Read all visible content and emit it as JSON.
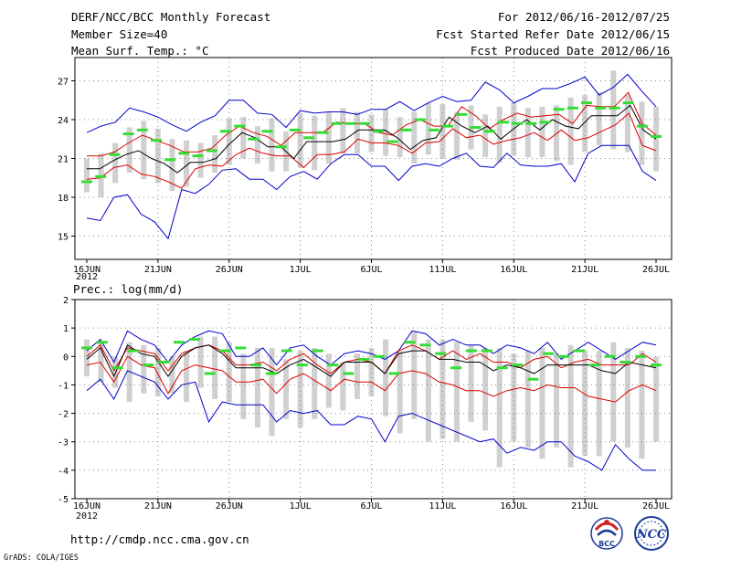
{
  "header": {
    "title": "DERF/NCC/BCC Monthly Forecast",
    "member_size": "Member Size=40",
    "forecast_range": "For 2012/06/16-2012/07/25",
    "started_refer": "Fcst Started Refer Date 2012/06/15",
    "produced": "Fcst Produced Date 2012/06/16"
  },
  "footer": {
    "url": "http://cmdp.ncc.cma.gov.cn",
    "credit": "GrADS: COLA/IGES",
    "logo_bcc": "BCC",
    "logo_ncc": "NCC"
  },
  "colors": {
    "median": "#000000",
    "quartile": "#dd0000",
    "extreme": "#0000cc",
    "observed": "#33dd33",
    "spread": "#d0d0d0",
    "grid": "#888888"
  },
  "chart_data": [
    {
      "type": "line",
      "title": "Mean Surf. Temp.: °C",
      "year_label": "2012",
      "x_tick_labels": [
        "16JUN",
        "21JUN",
        "26JUN",
        "1JUL",
        "6JUL",
        "11JUL",
        "16JUL",
        "21JUL",
        "26JUL"
      ],
      "y_ticks": [
        15,
        18,
        21,
        24,
        27
      ],
      "y_tick_labels": [
        "15",
        "18",
        "21",
        "24",
        "27"
      ],
      "ylim": [
        13.2,
        28.8
      ],
      "x_day_offsets": [
        0,
        40
      ],
      "series": [
        {
          "name": "max",
          "values": [
            23.0,
            23.5,
            23.8,
            24.9,
            24.6,
            24.2,
            23.6,
            23.1,
            23.8,
            24.3,
            25.5,
            25.5,
            24.5,
            24.4,
            23.4,
            24.7,
            24.5,
            24.6,
            24.6,
            24.4,
            24.8,
            24.8,
            25.4,
            24.7,
            25.3,
            25.8,
            25.4,
            25.5,
            26.9,
            26.3,
            25.3,
            25.8,
            26.4,
            26.4,
            26.8,
            27.3,
            25.9,
            26.5,
            27.5,
            26.2,
            25.0
          ]
        },
        {
          "name": "q75",
          "values": [
            21.2,
            21.2,
            21.5,
            22.2,
            22.8,
            22.4,
            22.0,
            21.5,
            21.5,
            21.8,
            22.8,
            23.5,
            23.0,
            22.7,
            22.0,
            23.0,
            23.0,
            23.0,
            23.8,
            23.7,
            23.7,
            23.0,
            22.8,
            23.6,
            24.0,
            23.5,
            23.5,
            25.0,
            24.3,
            23.3,
            24.0,
            24.5,
            24.2,
            24.3,
            24.4,
            23.7,
            25.1,
            25.0,
            25.0,
            26.1,
            23.7,
            22.8
          ]
        },
        {
          "name": "median",
          "values": [
            20.2,
            20.2,
            20.8,
            21.3,
            21.6,
            21.0,
            20.6,
            19.9,
            20.7,
            20.7,
            21.0,
            22.1,
            23.0,
            22.6,
            21.9,
            21.9,
            21.0,
            22.3,
            22.3,
            22.3,
            22.5,
            23.2,
            23.2,
            23.2,
            22.6,
            21.7,
            22.4,
            22.6,
            24.2,
            23.5,
            23.0,
            23.5,
            22.5,
            23.3,
            24.0,
            23.2,
            24.0,
            23.5,
            23.3,
            24.3,
            24.3,
            24.3,
            25.1,
            23.2,
            22.5
          ]
        },
        {
          "name": "q25",
          "values": [
            19.4,
            19.5,
            20.3,
            20.5,
            19.8,
            19.6,
            19.2,
            18.7,
            20.2,
            20.5,
            20.4,
            21.3,
            21.8,
            21.4,
            21.2,
            21.2,
            20.3,
            21.3,
            21.3,
            21.5,
            22.5,
            22.2,
            22.2,
            22.0,
            21.4,
            22.2,
            22.3,
            23.3,
            22.6,
            22.8,
            22.1,
            22.4,
            22.6,
            23.0,
            22.4,
            23.2,
            22.4,
            22.6,
            23.1,
            23.6,
            24.5,
            22.0,
            21.6
          ]
        },
        {
          "name": "min",
          "values": [
            16.4,
            16.2,
            18.0,
            18.2,
            16.7,
            16.1,
            14.8,
            18.6,
            18.3,
            19.0,
            20.1,
            20.2,
            19.4,
            19.4,
            18.6,
            19.6,
            20.0,
            19.4,
            20.6,
            21.3,
            21.3,
            20.4,
            20.4,
            19.3,
            20.4,
            20.6,
            20.4,
            21.0,
            21.4,
            20.4,
            20.3,
            21.4,
            20.5,
            20.4,
            20.4,
            20.6,
            19.2,
            21.4,
            22.0,
            22.0,
            22.0,
            20.0,
            19.3
          ]
        },
        {
          "name": "observed",
          "values": [
            19.2,
            19.6,
            21.3,
            22.9,
            23.2,
            22.4,
            20.9,
            21.4,
            21.2,
            21.6,
            23.1,
            23.5,
            22.5,
            23.1,
            21.9,
            23.2,
            22.6,
            23.0,
            23.7,
            23.7,
            23.7,
            23.1,
            22.3,
            23.2,
            24.0,
            23.2,
            23.5,
            24.4,
            23.4,
            23.1,
            23.8,
            23.7,
            23.7,
            23.8,
            24.8,
            24.9,
            25.3,
            24.9,
            24.9,
            25.3,
            23.5,
            22.7
          ]
        },
        {
          "name": "spread_hi",
          "values": [
            21.0,
            21.4,
            22.2,
            23.4,
            23.9,
            23.3,
            22.5,
            22.4,
            22.2,
            22.8,
            24.1,
            24.2,
            23.5,
            24.1,
            23.1,
            24.5,
            24.3,
            24.6,
            24.9,
            24.6,
            24.4,
            24.8,
            24.2,
            24.6,
            25.3,
            25.2,
            24.6,
            25.1,
            24.4,
            25.0,
            25.3,
            24.9,
            25.0,
            25.1,
            25.7,
            25.9,
            26.1,
            27.8,
            25.9,
            25.4,
            25.0
          ]
        },
        {
          "name": "spread_lo",
          "values": [
            18.4,
            18.0,
            19.1,
            19.9,
            19.4,
            19.1,
            18.5,
            18.8,
            19.5,
            19.9,
            20.5,
            21.0,
            20.6,
            20.0,
            20.0,
            20.3,
            20.1,
            20.6,
            21.4,
            21.4,
            21.5,
            21.2,
            21.1,
            20.6,
            21.3,
            21.0,
            20.9,
            21.7,
            21.1,
            20.7,
            21.2,
            21.1,
            21.1,
            20.8,
            20.5,
            21.5,
            22.0,
            21.7,
            21.5,
            20.5,
            20.0
          ]
        }
      ]
    },
    {
      "type": "line",
      "title": "Prec.: log(mm/d)",
      "year_label": "2012",
      "x_tick_labels": [
        "16JUN",
        "21JUN",
        "26JUN",
        "1JUL",
        "6JUL",
        "11JUL",
        "16JUL",
        "21JUL",
        "26JUL"
      ],
      "y_ticks": [
        -5,
        -4,
        -3,
        -2,
        -1,
        0,
        1,
        2
      ],
      "y_tick_labels": [
        "-5",
        "-4",
        "-3",
        "-2",
        "-1",
        "0",
        "1",
        "2"
      ],
      "ylim": [
        -5,
        2
      ],
      "x_day_offsets": [
        0,
        40
      ],
      "series": [
        {
          "name": "max",
          "values": [
            0.2,
            0.6,
            -0.2,
            0.9,
            0.6,
            0.4,
            -0.2,
            0.4,
            0.7,
            0.9,
            0.8,
            0.0,
            0.0,
            0.3,
            -0.3,
            0.3,
            0.4,
            0.0,
            -0.3,
            0.1,
            0.2,
            0.1,
            -0.1,
            0.2,
            0.9,
            0.8,
            0.4,
            0.6,
            0.4,
            0.4,
            0.1,
            0.4,
            0.3,
            0.1,
            0.5,
            -0.1,
            0.2,
            0.5,
            0.2,
            -0.1,
            0.2,
            0.5,
            0.4
          ]
        },
        {
          "name": "q75",
          "values": [
            0.0,
            0.4,
            -0.5,
            0.3,
            0.2,
            0.1,
            -0.5,
            0.1,
            0.3,
            0.4,
            0.2,
            -0.3,
            -0.3,
            -0.2,
            -0.5,
            -0.1,
            0.1,
            -0.3,
            -0.6,
            -0.2,
            -0.1,
            -0.2,
            -0.6,
            0.2,
            0.4,
            0.2,
            -0.1,
            0.2,
            -0.1,
            0.1,
            -0.2,
            -0.2,
            -0.4,
            -0.1,
            0.0,
            -0.4,
            -0.2,
            -0.1,
            -0.3,
            -0.3,
            -0.3,
            0.1,
            -0.2
          ]
        },
        {
          "name": "median",
          "values": [
            -0.1,
            0.3,
            -0.7,
            0.4,
            0.1,
            0.0,
            -0.7,
            0.0,
            0.3,
            0.4,
            0.1,
            -0.4,
            -0.4,
            -0.4,
            -0.6,
            -0.3,
            -0.1,
            -0.4,
            -0.7,
            -0.2,
            -0.2,
            -0.2,
            -0.6,
            0.1,
            0.2,
            0.2,
            -0.1,
            -0.1,
            -0.2,
            -0.2,
            -0.5,
            -0.3,
            -0.4,
            -0.6,
            -0.3,
            -0.3,
            -0.3,
            -0.3,
            -0.5,
            -0.6,
            -0.2,
            -0.3,
            -0.4
          ]
        },
        {
          "name": "q25",
          "values": [
            -0.3,
            -0.2,
            -0.9,
            0.0,
            -0.3,
            -0.4,
            -1.3,
            -0.5,
            -0.3,
            -0.4,
            -0.5,
            -0.9,
            -0.9,
            -0.8,
            -1.3,
            -0.8,
            -0.6,
            -0.9,
            -1.2,
            -0.8,
            -0.9,
            -0.9,
            -1.2,
            -0.6,
            -0.5,
            -0.6,
            -0.9,
            -1.0,
            -1.2,
            -1.2,
            -1.4,
            -1.2,
            -1.1,
            -1.2,
            -1.0,
            -1.1,
            -1.1,
            -1.4,
            -1.5,
            -1.6,
            -1.2,
            -1.0,
            -1.2
          ]
        },
        {
          "name": "min",
          "values": [
            -1.2,
            -0.8,
            -1.5,
            -0.5,
            -0.7,
            -0.9,
            -1.5,
            -1.0,
            -0.9,
            -2.3,
            -1.6,
            -1.7,
            -1.7,
            -1.7,
            -2.3,
            -1.9,
            -2.0,
            -1.9,
            -2.4,
            -2.4,
            -2.1,
            -2.2,
            -3.0,
            -2.1,
            -2.0,
            -2.2,
            -2.4,
            -2.6,
            -2.8,
            -3.0,
            -2.9,
            -3.4,
            -3.2,
            -3.3,
            -3.0,
            -3.0,
            -3.5,
            -3.7,
            -4.0,
            -3.1,
            -3.6,
            -4.0,
            -4.0
          ]
        },
        {
          "name": "observed",
          "values": [
            0.3,
            0.5,
            -0.4,
            0.2,
            -0.3,
            -0.2,
            0.5,
            0.6,
            -0.6,
            0.2,
            0.3,
            -0.3,
            -0.6,
            0.2,
            -0.3,
            0.2,
            -0.3,
            -0.6,
            -0.1,
            0.0,
            -0.6,
            0.5,
            0.4,
            0.1,
            -0.4,
            0.2,
            0.2,
            -0.4,
            -0.3,
            -0.8,
            0.1,
            0.0,
            0.2,
            -0.3,
            0.0,
            -0.2,
            0.0,
            -0.3
          ]
        },
        {
          "name": "spread_hi",
          "values": [
            0.6,
            0.5,
            0.0,
            0.5,
            0.4,
            0.3,
            0.0,
            0.2,
            0.7,
            0.7,
            0.5,
            0.1,
            0.3,
            0.3,
            -0.1,
            0.2,
            0.3,
            0.1,
            -0.2,
            0.1,
            0.3,
            0.6,
            0.2,
            0.9,
            0.6,
            0.6,
            0.5,
            0.4,
            0.3,
            0.3,
            0.1,
            0.2,
            0.3,
            0.1,
            0.4,
            0.2,
            0.2,
            0.5,
            0.3,
            0.2,
            0.0
          ]
        },
        {
          "name": "spread_lo",
          "values": [
            -0.7,
            -0.9,
            -1.1,
            -1.6,
            -1.3,
            -1.4,
            -1.3,
            -1.6,
            -1.1,
            -1.5,
            -1.6,
            -2.2,
            -2.5,
            -2.8,
            -2.2,
            -2.5,
            -2.2,
            -1.8,
            -1.9,
            -1.5,
            -1.4,
            -2.1,
            -2.7,
            -2.2,
            -3.0,
            -2.9,
            -3.0,
            -2.3,
            -2.6,
            -3.9,
            -3.0,
            -3.2,
            -3.6,
            -3.2,
            -3.9,
            -3.5,
            -3.5,
            -3.0,
            -3.2,
            -3.6,
            -3.0
          ]
        }
      ]
    }
  ]
}
